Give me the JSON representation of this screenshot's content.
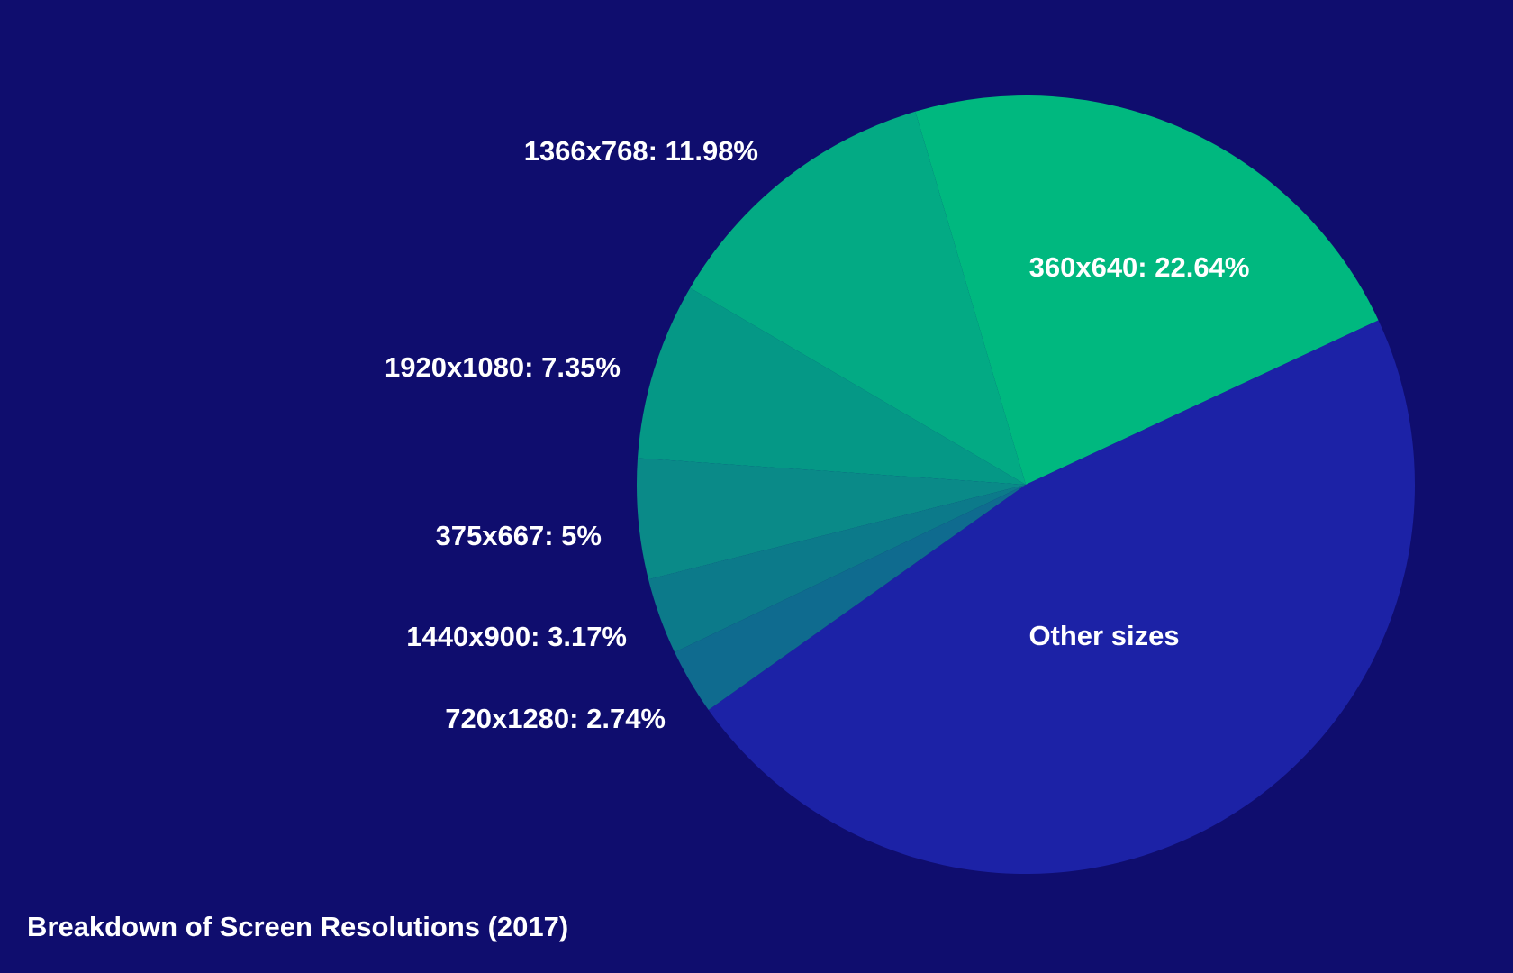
{
  "chart_data": {
    "type": "pie",
    "title": "Breakdown of Screen Resolutions (2017)",
    "start_angle_deg": -16.5,
    "direction": "clockwise",
    "slices": [
      {
        "label": "360x640",
        "value": 22.64,
        "display": "360x640: 22.64%",
        "color": "#00b87f"
      },
      {
        "label": "Other sizes",
        "value": 47.12,
        "display": "Other sizes",
        "color": "#1c22a6"
      },
      {
        "label": "720x1280",
        "value": 2.74,
        "display": "720x1280: 2.74%",
        "color": "#0f6b8f"
      },
      {
        "label": "1440x900",
        "value": 3.17,
        "display": "1440x900: 3.17%",
        "color": "#0c7a8a"
      },
      {
        "label": "375x667",
        "value": 5,
        "display": "375x667: 5%",
        "color": "#0a8a88"
      },
      {
        "label": "1920x1080",
        "value": 7.35,
        "display": "1920x1080: 7.35%",
        "color": "#059886"
      },
      {
        "label": "1366x768",
        "value": 11.98,
        "display": "1366x768: 11.98%",
        "color": "#03aa84"
      }
    ]
  }
}
